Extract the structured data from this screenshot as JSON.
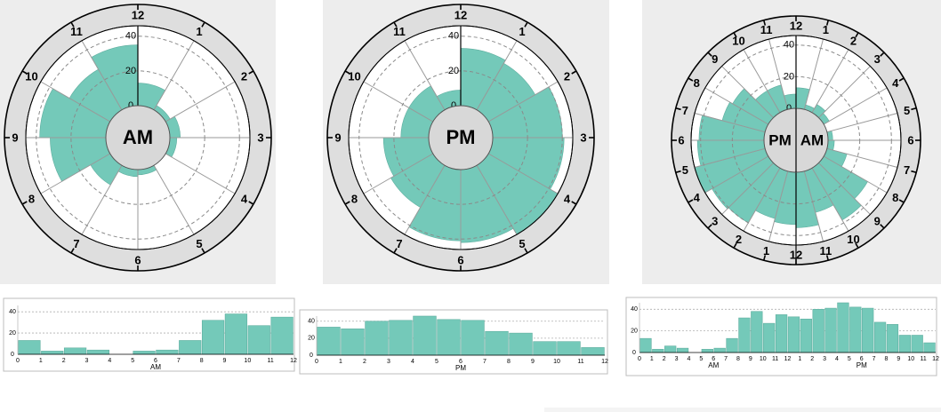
{
  "chart_data": [
    {
      "type": "polar-bar",
      "center_label": "AM",
      "hour_labels": [
        "12",
        "1",
        "2",
        "3",
        "4",
        "5",
        "6",
        "7",
        "8",
        "9",
        "10",
        "11"
      ],
      "r_ticks": [
        "0",
        "20",
        "40"
      ],
      "rlim": [
        0,
        46
      ],
      "values": [
        13,
        3,
        6,
        4,
        0,
        3,
        4,
        13,
        32,
        38,
        27,
        35
      ]
    },
    {
      "type": "polar-bar",
      "center_label": "PM",
      "hour_labels": [
        "12",
        "1",
        "2",
        "3",
        "4",
        "5",
        "6",
        "7",
        "8",
        "9",
        "10",
        "11"
      ],
      "r_ticks": [
        "0",
        "20",
        "40"
      ],
      "rlim": [
        0,
        46
      ],
      "values": [
        33,
        31,
        40,
        41,
        46,
        42,
        41,
        28,
        26,
        16,
        16,
        9
      ]
    },
    {
      "type": "polar-bar",
      "center_labels": [
        "PM",
        "AM"
      ],
      "hour_labels": [
        "12",
        "1",
        "2",
        "3",
        "4",
        "5",
        "6",
        "7",
        "8",
        "9",
        "10",
        "11",
        "12",
        "1",
        "2",
        "3",
        "4",
        "5",
        "6",
        "7",
        "8",
        "9",
        "10",
        "11"
      ],
      "r_ticks": [
        "0",
        "20",
        "40"
      ],
      "rlim": [
        0,
        46
      ],
      "values": [
        13,
        3,
        6,
        4,
        0,
        3,
        4,
        13,
        32,
        38,
        27,
        35,
        33,
        31,
        40,
        41,
        46,
        42,
        41,
        28,
        26,
        16,
        16,
        9
      ]
    },
    {
      "type": "bar",
      "x_ticks": [
        "0",
        "1",
        "2",
        "3",
        "4",
        "5",
        "6",
        "7",
        "8",
        "9",
        "10",
        "11",
        "12"
      ],
      "xlabel": "AM",
      "y_ticks": [
        "0",
        "20",
        "40"
      ],
      "ylim": [
        0,
        46
      ],
      "values": [
        13,
        3,
        6,
        4,
        0,
        3,
        4,
        13,
        32,
        38,
        27,
        35
      ]
    },
    {
      "type": "bar",
      "x_ticks": [
        "0",
        "1",
        "2",
        "3",
        "4",
        "5",
        "6",
        "7",
        "8",
        "9",
        "10",
        "11",
        "12"
      ],
      "xlabel": "PM",
      "y_ticks": [
        "0",
        "20",
        "40"
      ],
      "ylim": [
        0,
        46
      ],
      "values": [
        33,
        31,
        40,
        41,
        46,
        42,
        41,
        28,
        26,
        16,
        16,
        9
      ]
    },
    {
      "type": "bar",
      "x_ticks": [
        "0",
        "1",
        "2",
        "3",
        "4",
        "5",
        "6",
        "7",
        "8",
        "9",
        "10",
        "11",
        "12",
        "1",
        "2",
        "3",
        "4",
        "5",
        "6",
        "7",
        "8",
        "9",
        "10",
        "11",
        "12"
      ],
      "xlabels": [
        "AM",
        "PM"
      ],
      "y_ticks": [
        "0",
        "20",
        "40"
      ],
      "ylim": [
        0,
        46
      ],
      "values": [
        13,
        3,
        6,
        4,
        0,
        3,
        4,
        13,
        32,
        38,
        27,
        35,
        33,
        31,
        40,
        41,
        46,
        42,
        41,
        28,
        26,
        16,
        16,
        9
      ]
    }
  ],
  "colors": {
    "bar_fill": "#74c9b9",
    "ring": "#dedede",
    "panel": "#ededed"
  }
}
